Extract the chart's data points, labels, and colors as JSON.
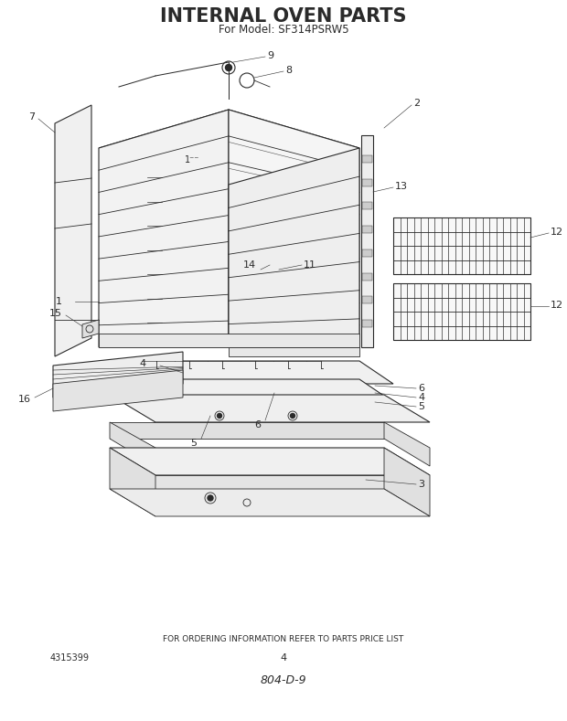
{
  "title": "INTERNAL OVEN PARTS",
  "subtitle": "For Model: SF314PSRW5",
  "footer_text": "FOR ORDERING INFORMATION REFER TO PARTS PRICE LIST",
  "part_number_left": "4315399",
  "page_number": "4",
  "doc_number": "804-D-9",
  "bg_color": "#ffffff",
  "line_color": "#2a2a2a",
  "title_fontsize": 15,
  "subtitle_fontsize": 8.5,
  "footer_fontsize": 6.5,
  "label_fontsize": 8
}
